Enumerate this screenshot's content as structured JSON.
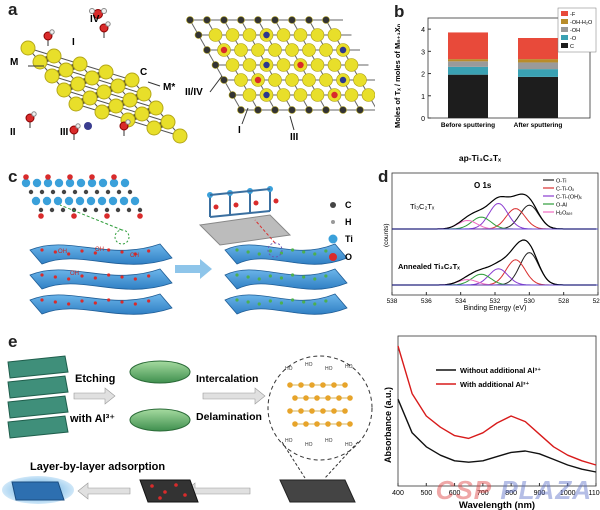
{
  "panels": {
    "a": {
      "label": "a",
      "site_labels": [
        "IV",
        "I",
        "M",
        "C",
        "M*",
        "II",
        "III"
      ],
      "site_labels_right": [
        "II/IV",
        "I",
        "III"
      ]
    },
    "b": {
      "label": "b",
      "ylabel": "Moles of Tₓ / moles of Mₙ₊₁Xₙ",
      "xlabel": "ap-Ti₃C₂Tₓ",
      "yticks": [
        "0",
        "1",
        "2",
        "3",
        "4"
      ],
      "legend": [
        "-F",
        "-OH-H₂O",
        "-OH",
        "-O",
        "C"
      ]
    },
    "c": {
      "label": "c",
      "legend": [
        "C",
        "H",
        "Ti",
        "O"
      ],
      "oh_label": "OH"
    },
    "d": {
      "label": "d",
      "title": "O 1s",
      "sample_top": "Ti₃C₂Tₓ",
      "sample_bottom": "Annealed Ti₃C₂Tₓ",
      "ylabel": "(counts)",
      "xlabel": "Binding Energy (eV)",
      "xticks": [
        "538",
        "536",
        "534",
        "532",
        "530",
        "528",
        "526"
      ],
      "legend": [
        "O-Ti",
        "C-Ti-Oₓ",
        "C-Ti-(OH)ₓ",
        "O-Al",
        "H₂Oₐₔₛ"
      ]
    },
    "e": {
      "label": "e",
      "step1": "Etching",
      "step1b": "with Al³⁺",
      "step2": "Intercalation",
      "step3": "Delamination",
      "step4": "Layer-by-layer adsorption",
      "ho_label": "HO"
    },
    "f": {
      "label": "f",
      "ylabel": "Absorbance (a.u.)",
      "xlabel": "Wavelength (nm)",
      "xticks": [
        "400",
        "500",
        "600",
        "700",
        "800",
        "900",
        "1000",
        "1100"
      ],
      "legend": [
        "Without additional Al³⁺",
        "With additional Al³⁺"
      ]
    }
  },
  "colors": {
    "ti": "#e8df2a",
    "c": "#333333",
    "o": "#d92b2b",
    "h": "#f0f0f0",
    "sheet": "#3a8fd0",
    "green": "#4caf50",
    "legend_f_black": "#111111",
    "legend_f_red": "#d81b1b"
  },
  "watermark": {
    "left": "CSP",
    "right": "PLAZA"
  },
  "chart_data": [
    {
      "type": "bar",
      "categories": [
        "Before sputtering",
        "After sputtering"
      ],
      "series": [
        {
          "name": "C",
          "values": [
            1.95,
            1.85
          ]
        },
        {
          "name": "-O",
          "values": [
            0.35,
            0.35
          ]
        },
        {
          "name": "-OH",
          "values": [
            0.25,
            0.3
          ]
        },
        {
          "name": "-OH-H₂O",
          "values": [
            0.1,
            0.15
          ]
        },
        {
          "name": "-F",
          "values": [
            1.2,
            0.95
          ]
        }
      ],
      "ylim": [
        0,
        4.5
      ]
    },
    {
      "type": "line",
      "title": "O 1s",
      "xlim": [
        538,
        526
      ],
      "series": [
        {
          "name": "O-Ti",
          "center": 530.0
        },
        {
          "name": "C-Ti-Oₓ",
          "center": 530.8
        },
        {
          "name": "C-Ti-(OH)ₓ",
          "center": 531.8
        },
        {
          "name": "O-Al",
          "center": 532.8
        },
        {
          "name": "H₂Oₐₔₛ",
          "center": 533.6
        }
      ]
    },
    {
      "type": "line",
      "xlim": [
        400,
        1100
      ],
      "series": [
        {
          "name": "Without additional Al³⁺",
          "x": [
            400,
            450,
            500,
            550,
            600,
            650,
            700,
            750,
            800,
            850,
            900,
            950,
            1000,
            1050,
            1100
          ],
          "y": [
            0.62,
            0.38,
            0.28,
            0.22,
            0.18,
            0.17,
            0.18,
            0.21,
            0.24,
            0.25,
            0.23,
            0.19,
            0.15,
            0.12,
            0.1
          ]
        },
        {
          "name": "With additional Al³⁺",
          "x": [
            400,
            450,
            500,
            550,
            600,
            650,
            700,
            750,
            800,
            850,
            900,
            950,
            1000,
            1050,
            1100
          ],
          "y": [
            1.0,
            0.66,
            0.5,
            0.42,
            0.36,
            0.34,
            0.38,
            0.45,
            0.5,
            0.46,
            0.37,
            0.28,
            0.22,
            0.18,
            0.15
          ]
        }
      ]
    }
  ]
}
